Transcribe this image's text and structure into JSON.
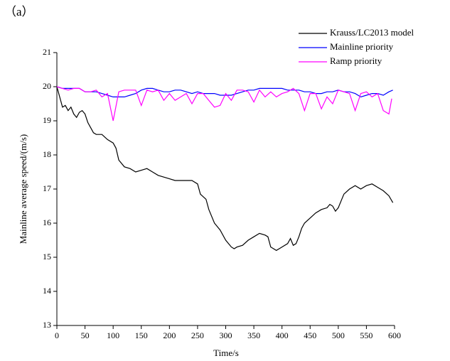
{
  "chart_data": {
    "type": "line",
    "label": "（a）",
    "xlabel": "Time/s",
    "ylabel": "Mainline average speed/(m/s)",
    "xlim": [
      0,
      600
    ],
    "xticks": [
      0,
      50,
      100,
      150,
      200,
      250,
      300,
      350,
      400,
      450,
      500,
      550,
      600
    ],
    "ylim": [
      13,
      21
    ],
    "yticks": [
      13,
      14,
      15,
      16,
      17,
      18,
      19,
      20,
      21
    ],
    "legend": "upper right",
    "series": [
      {
        "name": "Krauss/LC2013 model",
        "color": "#000000",
        "x": [
          0,
          5,
          10,
          15,
          20,
          25,
          30,
          35,
          40,
          45,
          50,
          55,
          60,
          65,
          70,
          80,
          90,
          100,
          105,
          110,
          120,
          130,
          140,
          150,
          160,
          170,
          180,
          190,
          200,
          210,
          220,
          230,
          240,
          250,
          255,
          265,
          270,
          280,
          290,
          300,
          310,
          315,
          320,
          330,
          340,
          350,
          360,
          370,
          375,
          380,
          390,
          400,
          410,
          415,
          420,
          425,
          430,
          435,
          440,
          450,
          460,
          470,
          480,
          485,
          490,
          495,
          500,
          505,
          510,
          520,
          530,
          540,
          550,
          560,
          570,
          575,
          580,
          590,
          597
        ],
        "values": [
          20.0,
          19.7,
          19.4,
          19.45,
          19.3,
          19.4,
          19.2,
          19.1,
          19.25,
          19.3,
          19.2,
          18.95,
          18.8,
          18.65,
          18.6,
          18.6,
          18.45,
          18.35,
          18.2,
          17.85,
          17.65,
          17.6,
          17.5,
          17.55,
          17.6,
          17.5,
          17.4,
          17.35,
          17.3,
          17.25,
          17.25,
          17.25,
          17.25,
          17.15,
          16.85,
          16.7,
          16.4,
          16.0,
          15.8,
          15.5,
          15.3,
          15.25,
          15.3,
          15.35,
          15.5,
          15.6,
          15.7,
          15.65,
          15.6,
          15.3,
          15.2,
          15.3,
          15.4,
          15.55,
          15.35,
          15.4,
          15.6,
          15.85,
          16.0,
          16.15,
          16.3,
          16.4,
          16.45,
          16.55,
          16.5,
          16.35,
          16.45,
          16.65,
          16.85,
          17.0,
          17.1,
          17.0,
          17.1,
          17.15,
          17.05,
          17.0,
          16.95,
          16.8,
          16.6
        ]
      },
      {
        "name": "Mainline priority",
        "color": "#0000ff",
        "x": [
          0,
          10,
          20,
          30,
          40,
          50,
          60,
          70,
          80,
          90,
          100,
          110,
          120,
          130,
          140,
          150,
          160,
          170,
          180,
          190,
          200,
          210,
          220,
          230,
          240,
          250,
          260,
          270,
          280,
          290,
          300,
          310,
          320,
          330,
          340,
          350,
          360,
          370,
          380,
          390,
          400,
          410,
          420,
          430,
          440,
          450,
          460,
          470,
          480,
          490,
          500,
          510,
          520,
          530,
          540,
          550,
          560,
          570,
          580,
          590,
          597
        ],
        "values": [
          20.0,
          19.95,
          19.95,
          19.95,
          19.95,
          19.85,
          19.85,
          19.85,
          19.8,
          19.75,
          19.7,
          19.7,
          19.7,
          19.75,
          19.8,
          19.9,
          19.95,
          19.95,
          19.9,
          19.85,
          19.85,
          19.9,
          19.9,
          19.85,
          19.8,
          19.85,
          19.8,
          19.8,
          19.8,
          19.75,
          19.75,
          19.75,
          19.8,
          19.85,
          19.9,
          19.9,
          19.95,
          19.95,
          19.95,
          19.95,
          19.95,
          19.9,
          19.9,
          19.9,
          19.85,
          19.85,
          19.8,
          19.8,
          19.85,
          19.85,
          19.9,
          19.85,
          19.85,
          19.8,
          19.7,
          19.75,
          19.8,
          19.8,
          19.75,
          19.85,
          19.9
        ]
      },
      {
        "name": "Ramp priority",
        "color": "#ff00ff",
        "x": [
          0,
          10,
          20,
          30,
          40,
          50,
          60,
          70,
          80,
          90,
          100,
          110,
          120,
          130,
          140,
          150,
          160,
          170,
          180,
          190,
          200,
          210,
          220,
          230,
          240,
          250,
          260,
          270,
          280,
          290,
          300,
          310,
          320,
          330,
          340,
          350,
          360,
          370,
          380,
          390,
          400,
          410,
          420,
          430,
          440,
          450,
          460,
          470,
          480,
          490,
          500,
          510,
          520,
          530,
          540,
          550,
          560,
          570,
          580,
          590,
          595
        ],
        "values": [
          20.0,
          19.95,
          19.9,
          19.95,
          19.95,
          19.85,
          19.85,
          19.9,
          19.7,
          19.8,
          19.0,
          19.85,
          19.9,
          19.9,
          19.9,
          19.45,
          19.9,
          19.85,
          19.9,
          19.6,
          19.8,
          19.6,
          19.7,
          19.8,
          19.5,
          19.8,
          19.8,
          19.6,
          19.4,
          19.45,
          19.8,
          19.6,
          19.9,
          19.9,
          19.85,
          19.55,
          19.9,
          19.7,
          19.85,
          19.7,
          19.8,
          19.85,
          19.95,
          19.8,
          19.3,
          19.8,
          19.8,
          19.35,
          19.7,
          19.5,
          19.9,
          19.85,
          19.8,
          19.3,
          19.8,
          19.85,
          19.7,
          19.8,
          19.3,
          19.2,
          19.65
        ]
      }
    ]
  }
}
